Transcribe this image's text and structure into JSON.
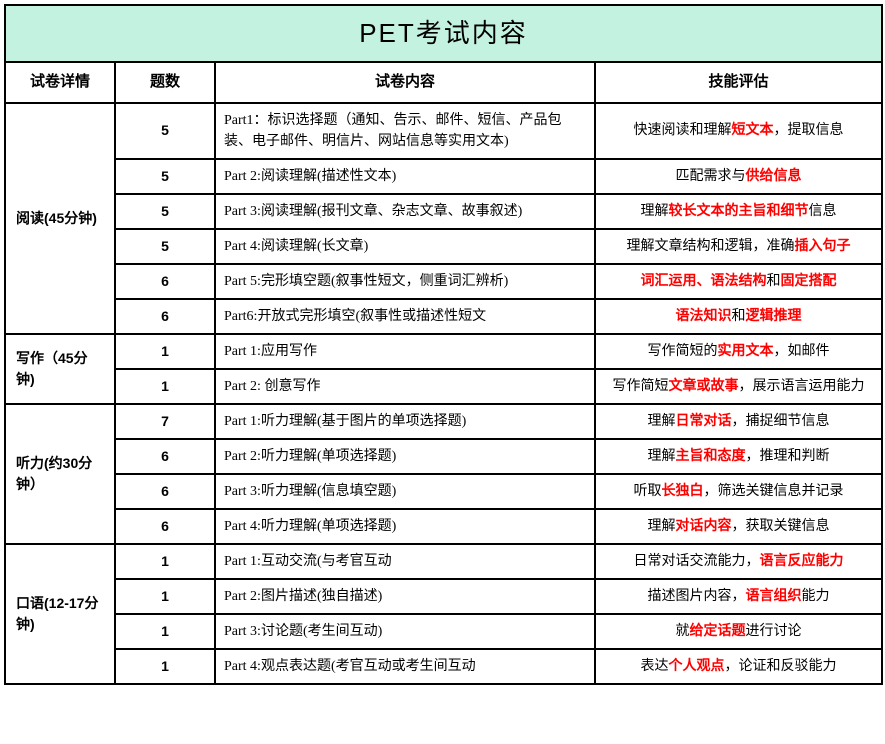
{
  "title": "PET考试内容",
  "headers": [
    "试卷详情",
    "题数",
    "试卷内容",
    "技能评估"
  ],
  "colors": {
    "title_bg": "#c4f2e1",
    "border": "#000000",
    "highlight": "#ff0000",
    "text": "#000000"
  },
  "fonts": {
    "title_size": 26,
    "header_size": 15,
    "body_size": 14
  },
  "sections": [
    {
      "name": "阅读(45分钟)",
      "rows": [
        {
          "count": "5",
          "content": "Part1：标识选择题（通知、告示、邮件、短信、产品包装、电子邮件、明信片、网站信息等实用文本)",
          "skill_parts": [
            {
              "t": "快速阅读和理解",
              "r": false
            },
            {
              "t": "短文本",
              "r": true
            },
            {
              "t": "，提取信息",
              "r": false
            }
          ]
        },
        {
          "count": "5",
          "content": "Part 2:阅读理解(描述性文本)",
          "skill_parts": [
            {
              "t": "匹配需求与",
              "r": false
            },
            {
              "t": "供给信息",
              "r": true
            }
          ]
        },
        {
          "count": "5",
          "content": "Part 3:阅读理解(报刊文章、杂志文章、故事叙述)",
          "skill_parts": [
            {
              "t": "理解",
              "r": false
            },
            {
              "t": "较长文本的主旨和细节",
              "r": true
            },
            {
              "t": "信息",
              "r": false
            }
          ]
        },
        {
          "count": "5",
          "content": "Part 4:阅读理解(长文章)",
          "skill_parts": [
            {
              "t": "理解文章结构和逻辑，准确",
              "r": false
            },
            {
              "t": "插入句子",
              "r": true
            }
          ]
        },
        {
          "count": "6",
          "content": "Part 5:完形填空题(叙事性短文，侧重词汇辨析)",
          "skill_parts": [
            {
              "t": "词汇运用、语法结构",
              "r": true
            },
            {
              "t": "和",
              "r": false
            },
            {
              "t": "固定搭配",
              "r": true
            }
          ]
        },
        {
          "count": "6",
          "content": "Part6:开放式完形填空(叙事性或描述性短文",
          "skill_parts": [
            {
              "t": "语法知识",
              "r": true
            },
            {
              "t": "和",
              "r": false
            },
            {
              "t": "逻辑推理",
              "r": true
            }
          ]
        }
      ]
    },
    {
      "name": "写作（45分钟)",
      "rows": [
        {
          "count": "1",
          "content": "Part 1:应用写作",
          "skill_parts": [
            {
              "t": "写作简短的",
              "r": false
            },
            {
              "t": "实用文本",
              "r": true
            },
            {
              "t": "，如邮件",
              "r": false
            }
          ]
        },
        {
          "count": "1",
          "content": "Part 2: 创意写作",
          "skill_parts": [
            {
              "t": "写作简短",
              "r": false
            },
            {
              "t": "文章或故事",
              "r": true
            },
            {
              "t": "，展示语言运用能力",
              "r": false
            }
          ]
        }
      ]
    },
    {
      "name": "听力(约30分钟）",
      "rows": [
        {
          "count": "7",
          "content": "Part 1:听力理解(基于图片的单项选择题)",
          "skill_parts": [
            {
              "t": "理解",
              "r": false
            },
            {
              "t": "日常对话",
              "r": true
            },
            {
              "t": "，捕捉细节信息",
              "r": false
            }
          ]
        },
        {
          "count": "6",
          "content": "Part 2:听力理解(单项选择题)",
          "skill_parts": [
            {
              "t": "理解",
              "r": false
            },
            {
              "t": "主旨和态度",
              "r": true
            },
            {
              "t": "，推理和判断",
              "r": false
            }
          ]
        },
        {
          "count": "6",
          "content": "Part 3:听力理解(信息填空题)",
          "skill_parts": [
            {
              "t": "听取",
              "r": false
            },
            {
              "t": "长独白",
              "r": true
            },
            {
              "t": "，筛选关键信息并记录",
              "r": false
            }
          ]
        },
        {
          "count": "6",
          "content": "Part 4:听力理解(单项选择题)",
          "skill_parts": [
            {
              "t": "理解",
              "r": false
            },
            {
              "t": "对话内容",
              "r": true
            },
            {
              "t": "，获取关键信息",
              "r": false
            }
          ]
        }
      ]
    },
    {
      "name": "口语(12-17分钟)",
      "rows": [
        {
          "count": "1",
          "content": "Part 1:互动交流(与考官互动",
          "skill_parts": [
            {
              "t": "日常对话交流能力，",
              "r": false
            },
            {
              "t": "语言反应能力",
              "r": true
            }
          ]
        },
        {
          "count": "1",
          "content": "Part 2:图片描述(独自描述)",
          "skill_parts": [
            {
              "t": "描述图片内容，",
              "r": false
            },
            {
              "t": "语言组织",
              "r": true
            },
            {
              "t": "能力",
              "r": false
            }
          ]
        },
        {
          "count": "1",
          "content": "Part 3:讨论题(考生间互动)",
          "skill_parts": [
            {
              "t": "就",
              "r": false
            },
            {
              "t": "给定话题",
              "r": true
            },
            {
              "t": "进行讨论",
              "r": false
            }
          ]
        },
        {
          "count": "1",
          "content": "Part 4:观点表达题(考官互动或考生间互动",
          "skill_parts": [
            {
              "t": "表达",
              "r": false
            },
            {
              "t": "个人观点",
              "r": true
            },
            {
              "t": "，论证和反驳能力",
              "r": false
            }
          ]
        }
      ]
    }
  ]
}
